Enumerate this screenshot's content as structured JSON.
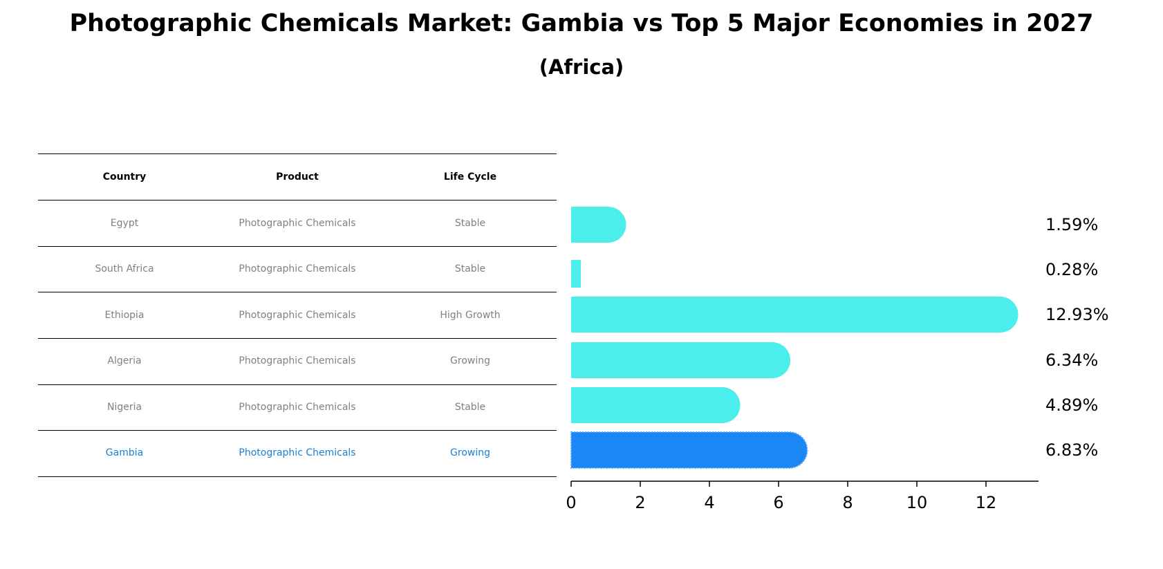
{
  "title": "Photographic Chemicals Market: Gambia vs Top 5 Major Economies in 2027",
  "subtitle": "(Africa)",
  "table": {
    "headers": [
      "Country",
      "Product",
      "Life Cycle"
    ],
    "rows": [
      [
        "Egypt",
        "Photographic Chemicals",
        "Stable"
      ],
      [
        "South Africa",
        "Photographic Chemicals",
        "Stable"
      ],
      [
        "Ethiopia",
        "Photographic Chemicals",
        "High Growth"
      ],
      [
        "Algeria",
        "Photographic Chemicals",
        "Growing"
      ],
      [
        "Nigeria",
        "Photographic Chemicals",
        "Stable"
      ],
      [
        "Gambia",
        "Photographic Chemicals",
        "Growing"
      ]
    ],
    "highlight_row": 5
  },
  "colors": {
    "bar": "#4beeeb",
    "highlight_bar": "#1a87f5",
    "highlight_text": "#1a7fd4",
    "row_text": "#808080"
  },
  "chart_data": {
    "type": "bar",
    "orientation": "horizontal",
    "categories": [
      "Egypt",
      "South Africa",
      "Ethiopia",
      "Algeria",
      "Nigeria",
      "Gambia"
    ],
    "values": [
      1.59,
      0.28,
      12.93,
      6.34,
      4.89,
      6.83
    ],
    "value_labels": [
      "1.59%",
      "0.28%",
      "12.93%",
      "6.34%",
      "4.89%",
      "6.83%"
    ],
    "highlight": "Gambia",
    "xlim": [
      0,
      13.6
    ],
    "xticks": [
      0,
      2,
      4,
      6,
      8,
      10,
      12
    ],
    "grid": false,
    "legend": "none"
  }
}
